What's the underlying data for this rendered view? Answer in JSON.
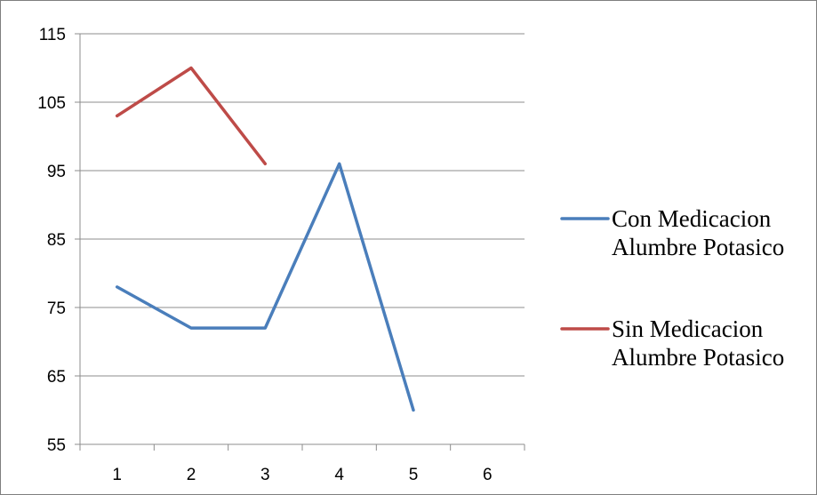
{
  "chart_data": {
    "type": "line",
    "x": [
      1,
      2,
      3,
      4,
      5,
      6
    ],
    "x_ticks": [
      "1",
      "2",
      "3",
      "4",
      "5",
      "6"
    ],
    "y_ticks": [
      "55",
      "65",
      "75",
      "85",
      "95",
      "105",
      "115"
    ],
    "ylim": [
      55,
      115
    ],
    "grid": "horizontal",
    "legend_position": "right",
    "series": [
      {
        "name_lines": [
          "Con Medicacion",
          "Alumbre Potasico"
        ],
        "color": "#4a7ebb",
        "x": [
          1,
          2,
          3,
          4,
          5
        ],
        "values": [
          78,
          72,
          72,
          96,
          60
        ]
      },
      {
        "name_lines": [
          "Sin Medicacion",
          "Alumbre Potasico"
        ],
        "color": "#be4b48",
        "x": [
          1,
          2,
          3
        ],
        "values": [
          103,
          110,
          96
        ]
      }
    ]
  }
}
